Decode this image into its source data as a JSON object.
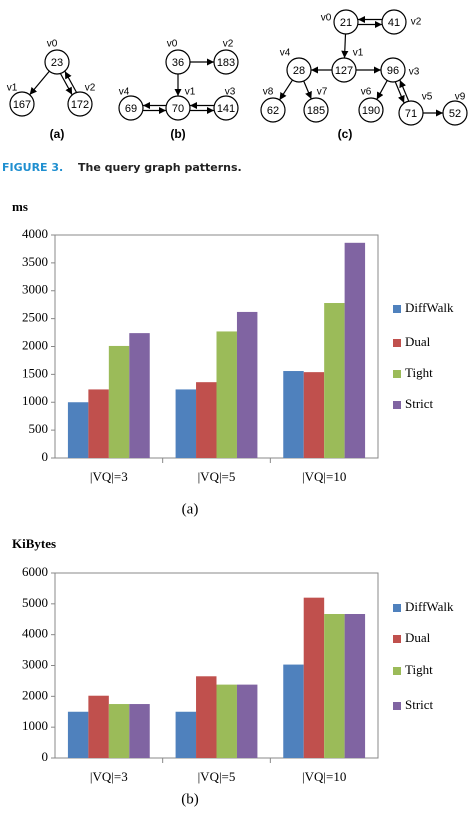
{
  "figure": {
    "graphs": [
      {
        "label": "(a)",
        "nodes": [
          {
            "name": "v0",
            "value": "23"
          },
          {
            "name": "v1",
            "value": "167"
          },
          {
            "name": "v2",
            "value": "172"
          }
        ]
      },
      {
        "label": "(b)",
        "nodes": [
          {
            "name": "v0",
            "value": "36"
          },
          {
            "name": "v2",
            "value": "183"
          },
          {
            "name": "v4",
            "value": "69"
          },
          {
            "name": "v1",
            "value": "70"
          },
          {
            "name": "v3",
            "value": "141"
          }
        ]
      },
      {
        "label": "(c)",
        "nodes": [
          {
            "name": "v0",
            "value": "21"
          },
          {
            "name": "v2",
            "value": "41"
          },
          {
            "name": "v1",
            "value": "127"
          },
          {
            "name": "v4",
            "value": "28"
          },
          {
            "name": "v3",
            "value": "96"
          },
          {
            "name": "v8",
            "value": "62"
          },
          {
            "name": "v7",
            "value": "185"
          },
          {
            "name": "v6",
            "value": "190"
          },
          {
            "name": "v5",
            "value": "71"
          },
          {
            "name": "v9",
            "value": "52"
          }
        ]
      }
    ],
    "caption": {
      "label": "FIGURE 3.",
      "text": "The query graph patterns."
    }
  },
  "chart_data": [
    {
      "type": "bar",
      "title": "ms",
      "label": "(a)",
      "categories": [
        "|VQ|=3",
        "|VQ|=5",
        "|VQ|=10"
      ],
      "series": [
        {
          "name": "DiffWalk",
          "color": "#4f81bd",
          "values": [
            1000,
            1230,
            1560
          ]
        },
        {
          "name": "Dual",
          "color": "#c0504d",
          "values": [
            1230,
            1360,
            1540
          ]
        },
        {
          "name": "Tight",
          "color": "#9bbb59",
          "values": [
            2010,
            2270,
            2780
          ]
        },
        {
          "name": "Strict",
          "color": "#8064a2",
          "values": [
            2240,
            2620,
            3860
          ]
        }
      ],
      "ylim": [
        0,
        4000
      ],
      "yticks": [
        0,
        500,
        1000,
        1500,
        2000,
        2500,
        3000,
        3500,
        4000
      ],
      "grid": false,
      "legend": "right"
    },
    {
      "type": "bar",
      "title": "KiBytes",
      "label": "(b)",
      "categories": [
        "|VQ|=3",
        "|VQ|=5",
        "|VQ|=10"
      ],
      "series": [
        {
          "name": "DiffWalk",
          "color": "#4f81bd",
          "values": [
            1500,
            1500,
            3030
          ]
        },
        {
          "name": "Dual",
          "color": "#c0504d",
          "values": [
            2020,
            2650,
            5200
          ]
        },
        {
          "name": "Tight",
          "color": "#9bbb59",
          "values": [
            1750,
            2380,
            4670
          ]
        },
        {
          "name": "Strict",
          "color": "#8064a2",
          "values": [
            1750,
            2380,
            4670
          ]
        }
      ],
      "ylim": [
        0,
        6000
      ],
      "yticks": [
        0,
        1000,
        2000,
        3000,
        4000,
        5000,
        6000
      ],
      "grid": false,
      "legend": "right"
    }
  ]
}
